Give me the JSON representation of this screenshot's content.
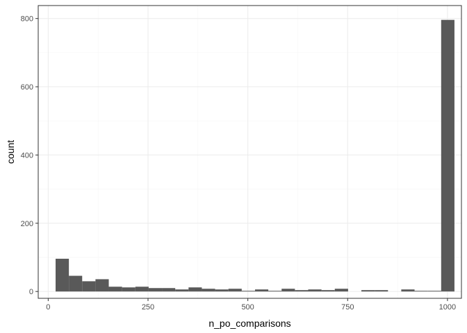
{
  "chart_data": {
    "type": "bar",
    "subtype": "histogram",
    "xlabel": "n_po_comparisons",
    "ylabel": "count",
    "xlim": [
      -25,
      1035
    ],
    "ylim": [
      -20,
      838
    ],
    "x_ticks": [
      0,
      250,
      500,
      750,
      1000
    ],
    "y_ticks": [
      0,
      200,
      400,
      600,
      800
    ],
    "grid": true,
    "bin_width": 33.3,
    "colors": {
      "bar": "#595959",
      "grid": "#ebebeb",
      "border": "#333333"
    },
    "bins": [
      {
        "x0": 18.5,
        "x1": 51.8,
        "count": 96
      },
      {
        "x0": 51.8,
        "x1": 85.1,
        "count": 46
      },
      {
        "x0": 85.1,
        "x1": 118.4,
        "count": 30
      },
      {
        "x0": 118.4,
        "x1": 151.7,
        "count": 36
      },
      {
        "x0": 151.7,
        "x1": 185.0,
        "count": 14
      },
      {
        "x0": 185.0,
        "x1": 218.3,
        "count": 12
      },
      {
        "x0": 218.3,
        "x1": 251.6,
        "count": 14
      },
      {
        "x0": 251.6,
        "x1": 284.9,
        "count": 10
      },
      {
        "x0": 284.9,
        "x1": 318.2,
        "count": 10
      },
      {
        "x0": 318.2,
        "x1": 351.5,
        "count": 6
      },
      {
        "x0": 351.5,
        "x1": 384.8,
        "count": 12
      },
      {
        "x0": 384.8,
        "x1": 418.1,
        "count": 8
      },
      {
        "x0": 418.1,
        "x1": 451.4,
        "count": 6
      },
      {
        "x0": 451.4,
        "x1": 484.7,
        "count": 8
      },
      {
        "x0": 484.7,
        "x1": 518.0,
        "count": 2
      },
      {
        "x0": 518.0,
        "x1": 551.3,
        "count": 6
      },
      {
        "x0": 551.3,
        "x1": 584.6,
        "count": 2
      },
      {
        "x0": 584.6,
        "x1": 617.9,
        "count": 8
      },
      {
        "x0": 617.9,
        "x1": 651.2,
        "count": 4
      },
      {
        "x0": 651.2,
        "x1": 684.5,
        "count": 6
      },
      {
        "x0": 684.5,
        "x1": 717.8,
        "count": 4
      },
      {
        "x0": 717.8,
        "x1": 751.1,
        "count": 8
      },
      {
        "x0": 751.1,
        "x1": 784.4,
        "count": 0
      },
      {
        "x0": 784.4,
        "x1": 817.7,
        "count": 4
      },
      {
        "x0": 817.7,
        "x1": 851.0,
        "count": 4
      },
      {
        "x0": 851.0,
        "x1": 884.3,
        "count": 0
      },
      {
        "x0": 884.3,
        "x1": 917.6,
        "count": 6
      },
      {
        "x0": 917.6,
        "x1": 950.9,
        "count": 2
      },
      {
        "x0": 950.9,
        "x1": 984.2,
        "count": 2
      },
      {
        "x0": 984.2,
        "x1": 1017.5,
        "count": 796
      }
    ]
  }
}
